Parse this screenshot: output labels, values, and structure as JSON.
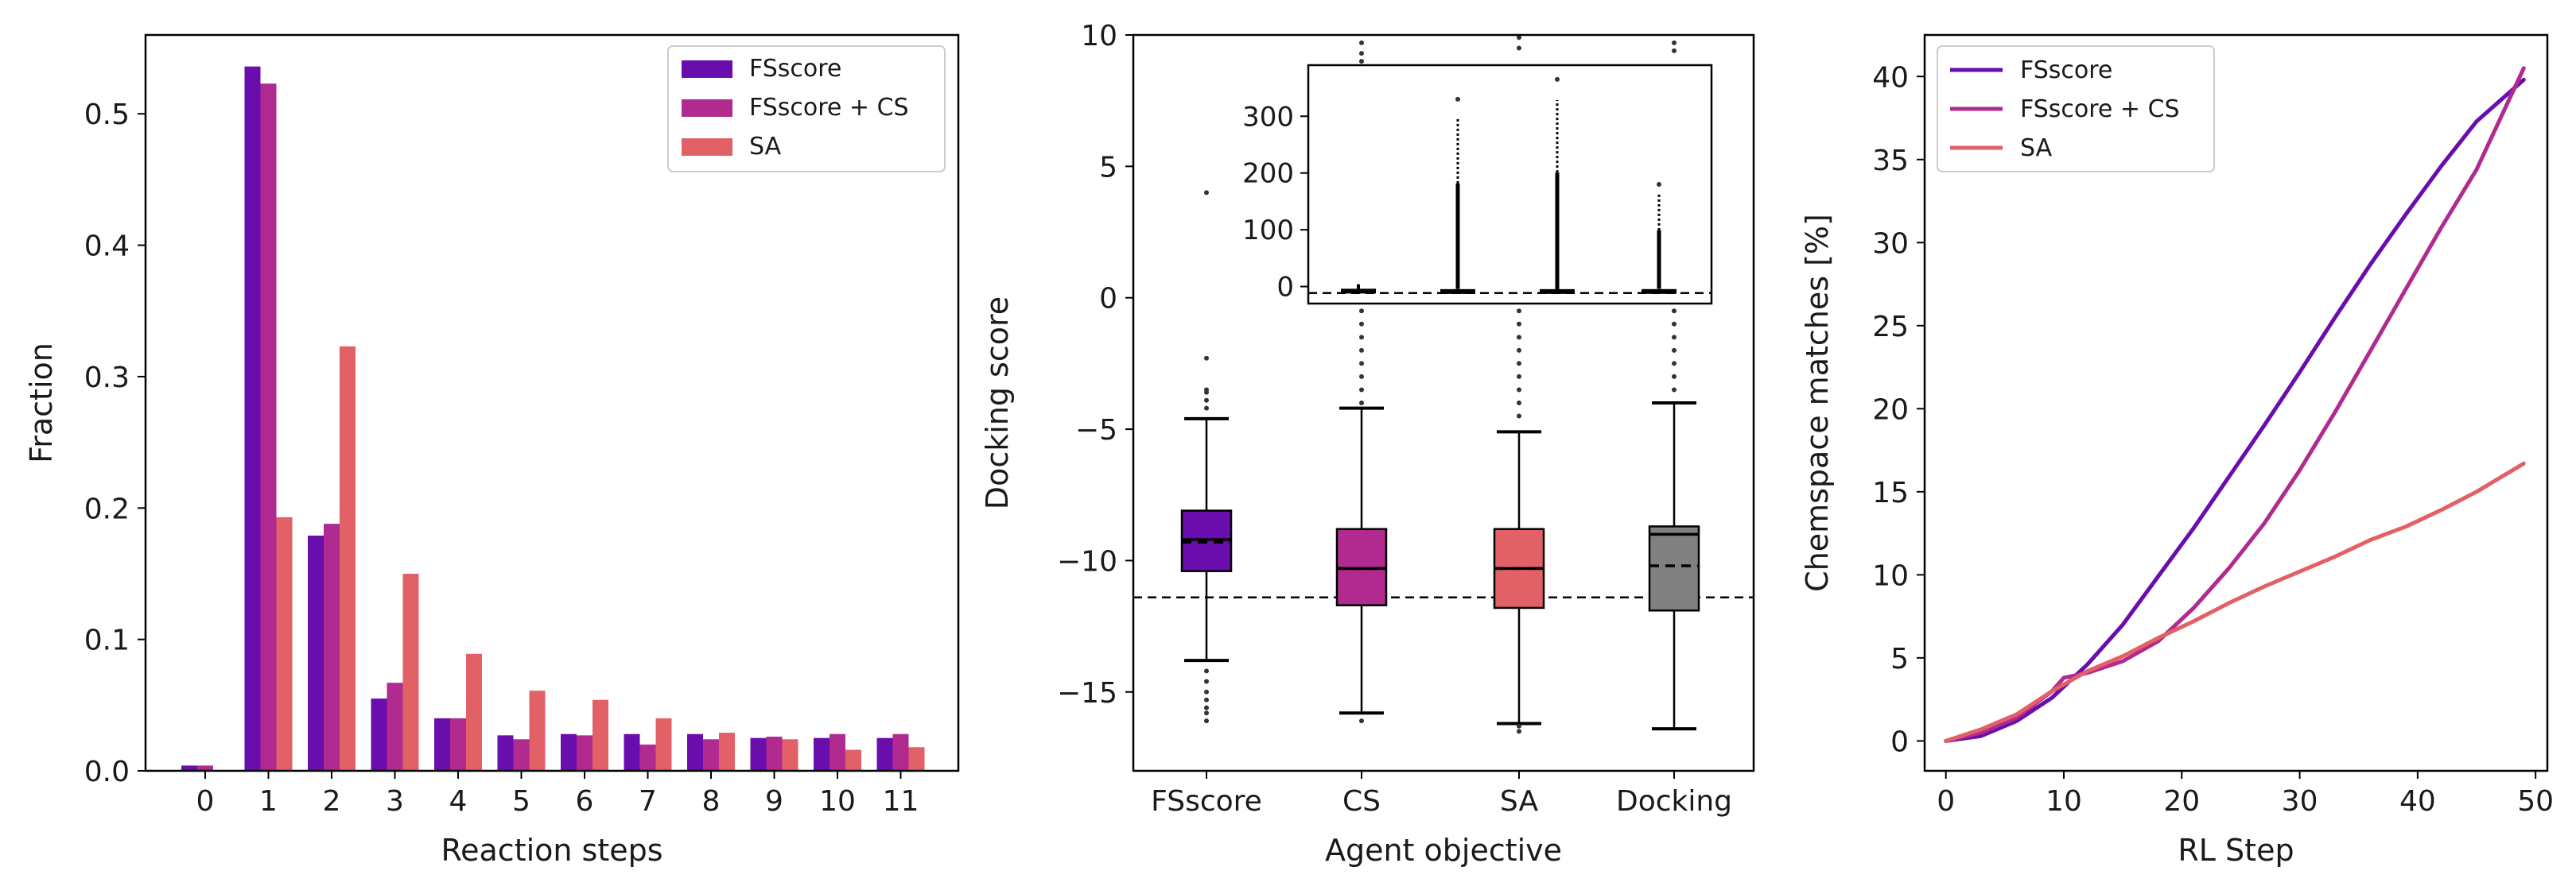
{
  "chart_data": [
    {
      "type": "bar",
      "xlabel": "Reaction steps",
      "ylabel": "Fraction",
      "ylim": [
        0,
        0.56
      ],
      "yticks": [
        0.0,
        0.1,
        0.2,
        0.3,
        0.4,
        0.5
      ],
      "ytick_labels": [
        "0.0",
        "0.1",
        "0.2",
        "0.3",
        "0.4",
        "0.5"
      ],
      "categories": [
        "0",
        "1",
        "2",
        "3",
        "4",
        "5",
        "6",
        "7",
        "8",
        "9",
        "10",
        "11"
      ],
      "legend_position": "top-right",
      "series": [
        {
          "name": "FSscore",
          "color": "#6a0dad",
          "values": [
            0.004,
            0.536,
            0.179,
            0.055,
            0.04,
            0.027,
            0.028,
            0.028,
            0.028,
            0.025,
            0.025,
            0.025
          ]
        },
        {
          "name": "FSscore + CS",
          "color": "#b02a8f",
          "values": [
            0.004,
            0.523,
            0.188,
            0.067,
            0.04,
            0.024,
            0.027,
            0.02,
            0.024,
            0.026,
            0.028,
            0.028
          ]
        },
        {
          "name": "SA",
          "color": "#e26166",
          "values": [
            0.0,
            0.193,
            0.323,
            0.15,
            0.089,
            0.061,
            0.054,
            0.04,
            0.029,
            0.024,
            0.016,
            0.018
          ]
        }
      ]
    },
    {
      "type": "box",
      "xlabel": "Agent objective",
      "ylabel": "Docking score",
      "ylim": [
        -18,
        10
      ],
      "yticks": [
        -15,
        -10,
        -5,
        0,
        5,
        10
      ],
      "ytick_labels": [
        "−15",
        "−10",
        "−5",
        "0",
        "5",
        "10"
      ],
      "reference_line": -11.4,
      "categories": [
        "FSscore",
        "CS",
        "SA",
        "Docking"
      ],
      "boxes": [
        {
          "name": "FSscore",
          "color": "#6a0dad",
          "q1": -10.4,
          "median": -9.2,
          "mean": -9.3,
          "q3": -8.1,
          "whislo": -13.8,
          "whishi": -4.6,
          "caplo": -13.8,
          "caphi": -4.6,
          "fliers": [
            -14.2,
            -14.6,
            -15.0,
            -15.3,
            -15.6,
            -15.8,
            -16.1,
            -4.2,
            -3.9,
            -3.6,
            -3.5,
            -2.3,
            4.0
          ]
        },
        {
          "name": "CS",
          "color": "#b02a8f",
          "q1": -11.7,
          "median": -10.3,
          "mean": -10.3,
          "q3": -8.8,
          "whislo": -15.8,
          "whishi": -4.2,
          "caplo": -15.8,
          "caphi": -4.2,
          "fliers": [
            -16.1,
            -4.0,
            -3.5,
            -3.0,
            -2.5,
            -2.0,
            -1.5,
            -1.0,
            -0.5,
            9.0,
            9.3,
            9.7
          ]
        },
        {
          "name": "SA",
          "color": "#e26166",
          "q1": -11.8,
          "median": -10.3,
          "mean": -10.3,
          "q3": -8.8,
          "whislo": -16.2,
          "whishi": -5.1,
          "caplo": -16.2,
          "caphi": -5.1,
          "fliers": [
            -16.5,
            -16.3,
            -4.5,
            -4.0,
            -3.5,
            -3.0,
            -2.5,
            -2.0,
            -1.5,
            -1.0,
            -0.5,
            9.5,
            9.9
          ]
        },
        {
          "name": "Docking",
          "color": "#808080",
          "q1": -11.9,
          "median": -9.0,
          "mean": -10.2,
          "q3": -8.7,
          "whislo": -16.4,
          "whishi": -4.0,
          "caplo": -16.4,
          "caphi": -4.0,
          "fliers": [
            -3.5,
            -3.0,
            -2.5,
            -2.0,
            -1.5,
            -1.0,
            -0.5,
            9.4,
            9.7
          ]
        }
      ],
      "inset": {
        "ylim": [
          -30,
          390
        ],
        "yticks": [
          0,
          100,
          200,
          300
        ],
        "ytick_labels": [
          "0",
          "100",
          "200",
          "300"
        ],
        "reference_line": -11.4,
        "boxes": [
          {
            "name": "FSscore",
            "q1": -10.4,
            "q3": -8.1,
            "whislo": -13.8,
            "whishi": -4.6,
            "flier_max": 4.0
          },
          {
            "name": "CS",
            "q1": -11.7,
            "q3": -8.8,
            "whislo": -15.8,
            "whishi": -4.2,
            "flier_max": 330
          },
          {
            "name": "SA",
            "q1": -11.8,
            "q3": -8.8,
            "whislo": -16.2,
            "whishi": -5.1,
            "flier_max": 365
          },
          {
            "name": "Docking",
            "q1": -11.9,
            "q3": -8.7,
            "whislo": -16.4,
            "whishi": -4.0,
            "flier_max": 180
          }
        ]
      }
    },
    {
      "type": "line",
      "xlabel": "RL Step",
      "ylabel": "Chemspace matches [%]",
      "xlim": [
        -1.8,
        51
      ],
      "ylim": [
        -1.8,
        42.5
      ],
      "xticks": [
        0,
        10,
        20,
        30,
        40,
        50
      ],
      "xtick_labels": [
        "0",
        "10",
        "20",
        "30",
        "40",
        "50"
      ],
      "yticks": [
        0,
        5,
        10,
        15,
        20,
        25,
        30,
        35,
        40
      ],
      "ytick_labels": [
        "0",
        "5",
        "10",
        "15",
        "20",
        "25",
        "30",
        "35",
        "40"
      ],
      "legend_position": "top-left",
      "series": [
        {
          "name": "FSscore",
          "color": "#6a0dad",
          "x": [
            0,
            3,
            6,
            9,
            12,
            15,
            18,
            21,
            24,
            27,
            30,
            33,
            36,
            39,
            42,
            45,
            49
          ],
          "values": [
            0.0,
            0.3,
            1.2,
            2.6,
            4.6,
            7.0,
            9.9,
            12.8,
            15.9,
            19.0,
            22.2,
            25.5,
            28.7,
            31.7,
            34.6,
            37.3,
            39.8
          ]
        },
        {
          "name": "FSscore + CS",
          "color": "#b02a8f",
          "x": [
            0,
            3,
            6,
            9,
            10,
            12,
            15,
            18,
            21,
            24,
            27,
            30,
            33,
            36,
            39,
            42,
            45,
            49
          ],
          "values": [
            0.0,
            0.5,
            1.4,
            3.0,
            3.8,
            4.1,
            4.8,
            6.0,
            8.0,
            10.4,
            13.1,
            16.3,
            19.8,
            23.5,
            27.2,
            30.9,
            34.4,
            40.5
          ]
        },
        {
          "name": "SA",
          "color": "#e26166",
          "x": [
            0,
            3,
            6,
            9,
            12,
            15,
            18,
            21,
            24,
            27,
            30,
            33,
            36,
            39,
            42,
            45,
            49
          ],
          "values": [
            0.0,
            0.7,
            1.6,
            3.0,
            4.2,
            5.1,
            6.2,
            7.2,
            8.3,
            9.3,
            10.2,
            11.1,
            12.1,
            12.9,
            13.9,
            15.0,
            16.7
          ]
        }
      ]
    }
  ]
}
